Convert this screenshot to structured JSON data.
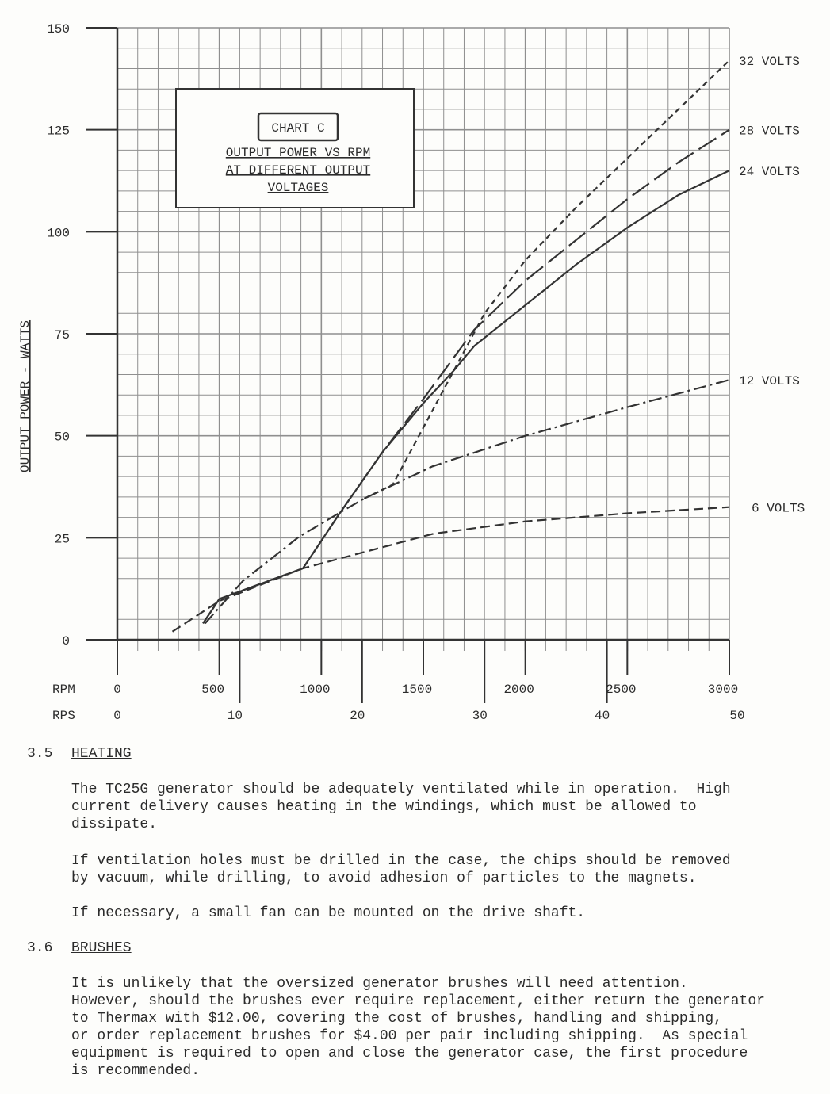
{
  "chart_data": {
    "type": "line",
    "title": "CHART C",
    "subtitle": [
      "OUTPUT POWER VS RPM",
      "AT DIFFERENT OUTPUT",
      "VOLTAGES"
    ],
    "xlabel": "RPM",
    "x2label": "RPS",
    "ylabel": "OUTPUT POWER - WATTS",
    "xlim": [
      0,
      3000
    ],
    "ylim": [
      0,
      150
    ],
    "grid": true,
    "y_ticks": [
      0,
      25,
      50,
      75,
      100,
      125,
      150
    ],
    "x_ticks_rpm": [
      0,
      500,
      1000,
      1500,
      2000,
      2500,
      3000
    ],
    "x_ticks_rps": [
      0,
      10,
      20,
      30,
      40,
      50
    ],
    "legend_placement": "right (end-of-line labels)",
    "series": [
      {
        "name": "32 VOLTS",
        "style": "short-dash",
        "points": [
          [
            1210,
            34.6
          ],
          [
            1350,
            38
          ],
          [
            1500,
            52
          ],
          [
            1650,
            66
          ],
          [
            1800,
            80
          ],
          [
            2000,
            93
          ],
          [
            2250,
            106
          ],
          [
            2500,
            118
          ],
          [
            2750,
            130
          ],
          [
            3000,
            142
          ]
        ]
      },
      {
        "name": "28 VOLTS",
        "style": "long-dash",
        "points": [
          [
            420,
            4
          ],
          [
            500,
            10
          ],
          [
            910,
            17.5
          ],
          [
            1090,
            31
          ],
          [
            1300,
            46
          ],
          [
            1500,
            59
          ],
          [
            1750,
            76
          ],
          [
            2000,
            88
          ],
          [
            2250,
            98
          ],
          [
            2500,
            108
          ],
          [
            2750,
            117
          ],
          [
            3000,
            125
          ]
        ]
      },
      {
        "name": "24 VOLTS",
        "style": "solid",
        "points": [
          [
            420,
            4
          ],
          [
            500,
            10
          ],
          [
            910,
            17.5
          ],
          [
            1090,
            31
          ],
          [
            1300,
            46
          ],
          [
            1500,
            58
          ],
          [
            1650,
            66
          ],
          [
            1750,
            72
          ],
          [
            2000,
            82
          ],
          [
            2250,
            92
          ],
          [
            2500,
            101
          ],
          [
            2750,
            109
          ],
          [
            3000,
            115
          ]
        ]
      },
      {
        "name": "12 VOLTS",
        "style": "dash-dot",
        "points": [
          [
            430,
            4
          ],
          [
            615,
            14.4
          ],
          [
            890,
            25.2
          ],
          [
            1085,
            31
          ],
          [
            1210,
            34.6
          ],
          [
            1545,
            42.5
          ],
          [
            2000,
            50
          ],
          [
            2500,
            57
          ],
          [
            3000,
            63.7
          ]
        ]
      },
      {
        "name": "6 VOLTS",
        "style": "dash",
        "points": [
          [
            270,
            2
          ],
          [
            500,
            9.5
          ],
          [
            910,
            17.5
          ],
          [
            1550,
            26
          ],
          [
            2000,
            29
          ],
          [
            2500,
            31
          ],
          [
            3000,
            32.5
          ]
        ]
      }
    ]
  },
  "sections": [
    {
      "number": "3.5",
      "title": "HEATING",
      "paragraphs": [
        [
          "The TC25G generator should be adequately ventilated while in operation.  High",
          "current delivery causes heating in the windings, which must be allowed to",
          "dissipate."
        ],
        [
          "If ventilation holes must be drilled in the case, the chips should be removed",
          "by vacuum, while drilling, to avoid adhesion of particles to the magnets."
        ],
        [
          "If necessary, a small fan can be mounted on the drive shaft."
        ]
      ]
    },
    {
      "number": "3.6",
      "title": "BRUSHES",
      "paragraphs": [
        [
          "It is unlikely that the oversized generator brushes will need attention.",
          "However, should the brushes ever require replacement, either return the generator",
          "to Thermax with $12.00, covering the cost of brushes, handling and shipping,",
          "or order replacement brushes for $4.00 per pair including shipping.  As special",
          "equipment is required to open and close the generator case, the first procedure",
          "is recommended."
        ]
      ]
    }
  ],
  "colors": {
    "ink": "#2b2b2b",
    "grid": "#9a9a9a",
    "paper": "#fdfdfb"
  }
}
